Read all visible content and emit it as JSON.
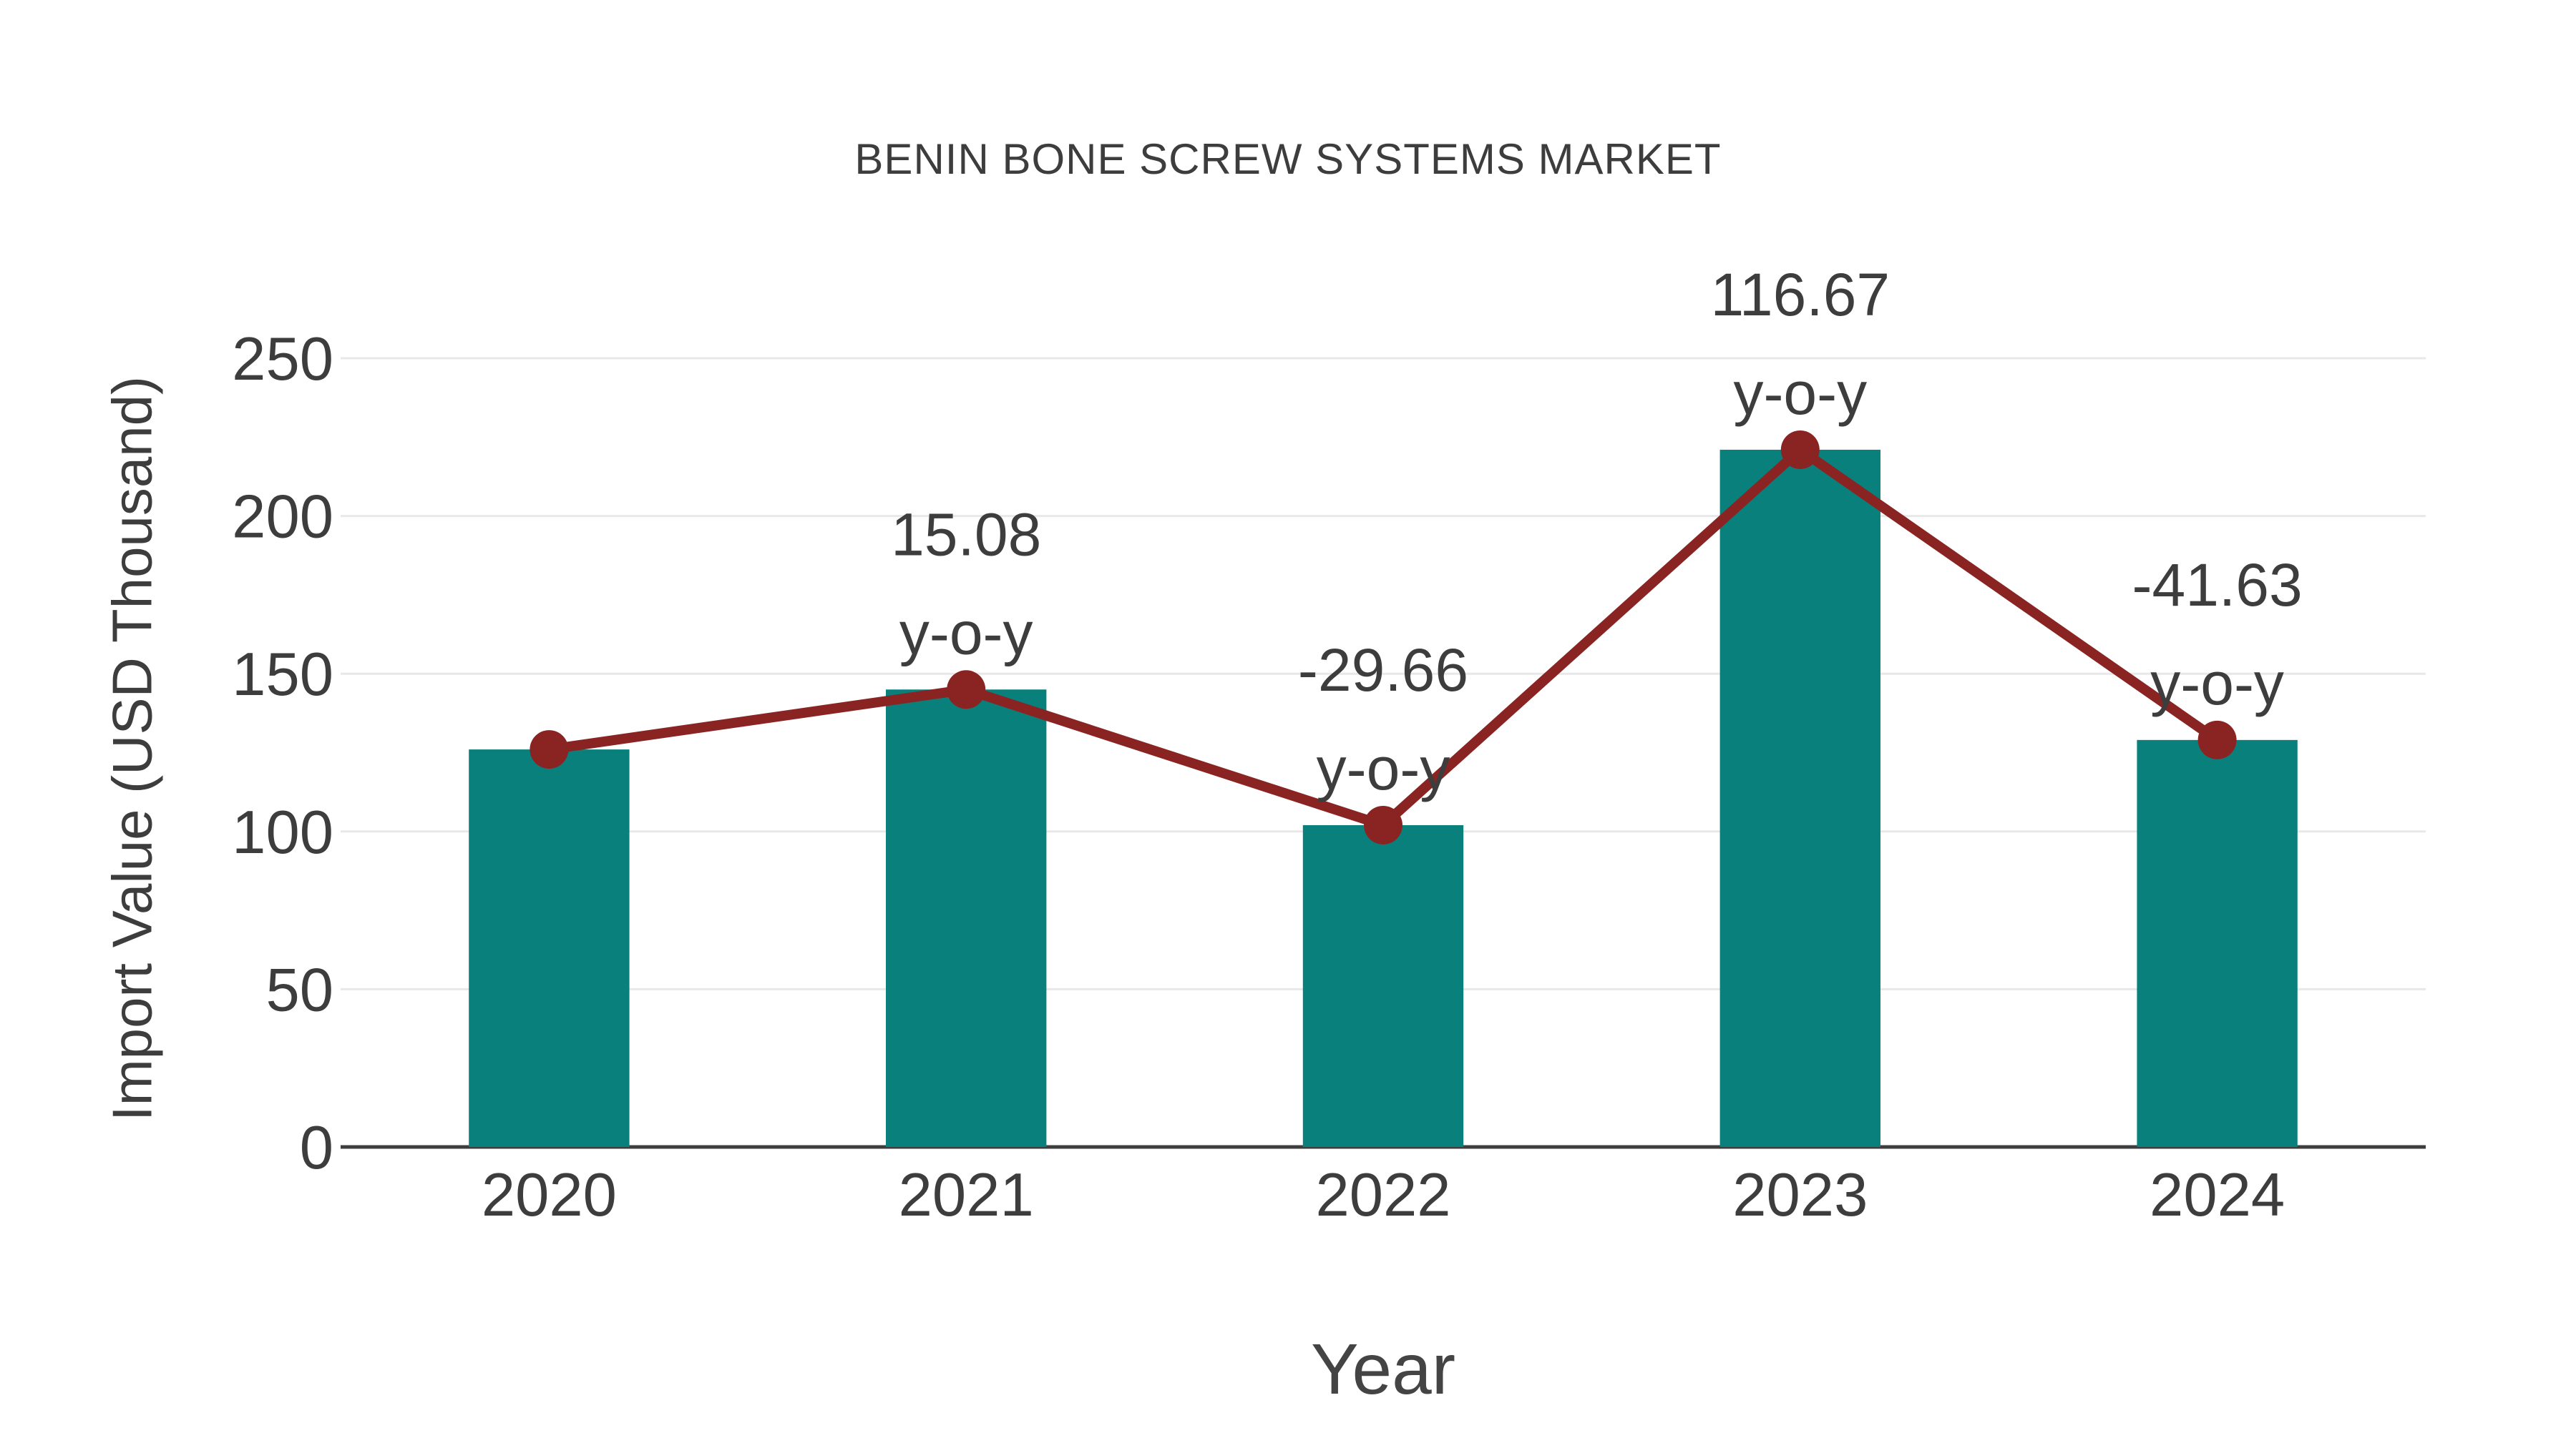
{
  "chart_data": {
    "type": "bar+line",
    "title": "BENIN BONE SCREW SYSTEMS MARKET",
    "xlabel": "Year",
    "ylabel": "Import Value (USD Thousand)",
    "categories": [
      "2020",
      "2021",
      "2022",
      "2023",
      "2024"
    ],
    "series": [
      {
        "name": "import-value-bars",
        "type": "bar",
        "color": "#0a807d",
        "values": [
          126,
          145,
          102,
          221,
          129
        ]
      },
      {
        "name": "yoy-trend-line",
        "type": "line",
        "color": "#8a2423",
        "plotted_at_bar_values": true,
        "yoy_percent": [
          null,
          15.08,
          -29.66,
          116.67,
          -41.63
        ],
        "point_labels": [
          [],
          [
            "15.08",
            "y-o-y"
          ],
          [
            "-29.66",
            "y-o-y"
          ],
          [
            "116.67",
            "y-o-y"
          ],
          [
            "-41.63",
            "y-o-y"
          ]
        ]
      }
    ],
    "yticks": [
      0,
      50,
      100,
      150,
      200,
      250
    ],
    "ylim": [
      0,
      250
    ],
    "grid": true,
    "legend_position": "none",
    "background": "#ffffff",
    "text_color": "#3d3d3d",
    "grid_color": "#e8e8e8",
    "axis_color": "#3d3d3d"
  }
}
